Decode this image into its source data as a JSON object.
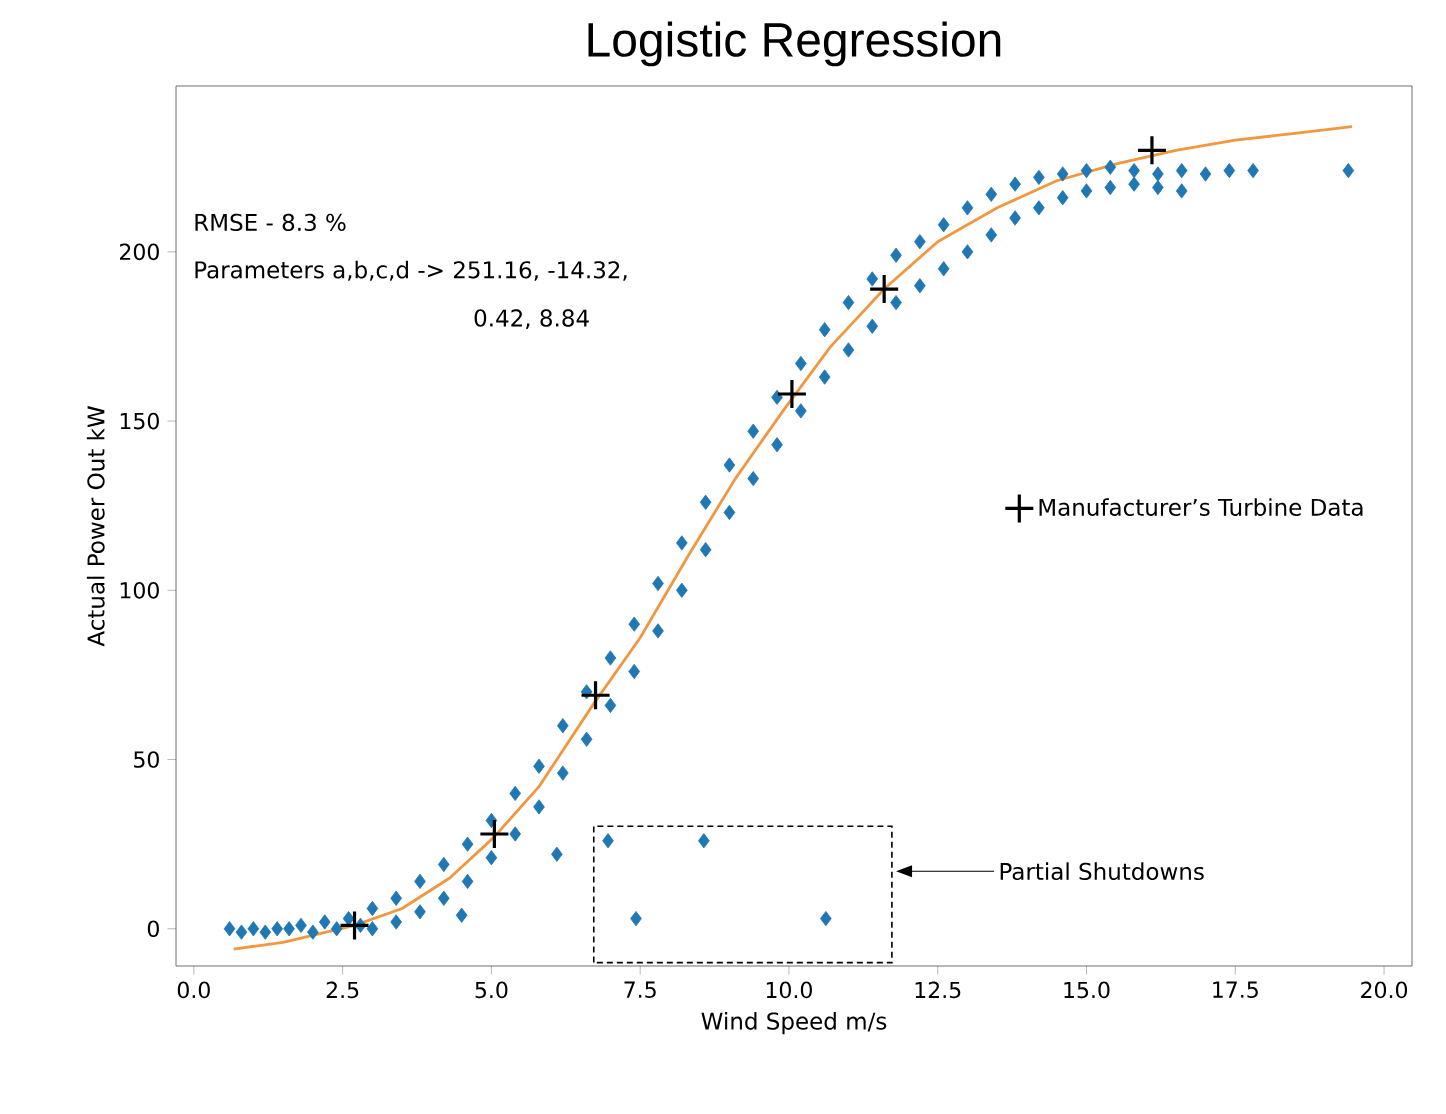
{
  "chart_data": {
    "type": "scatter",
    "title": "Logistic Regression",
    "xlabel": "Wind Speed m/s",
    "ylabel": "Actual Power Out kW",
    "xlim": [
      -0.3,
      20.47
    ],
    "ylim": [
      -11,
      249
    ],
    "xticks": [
      {
        "value": 0,
        "label": "0.0"
      },
      {
        "value": 2.5,
        "label": "2.5"
      },
      {
        "value": 5,
        "label": "5.0"
      },
      {
        "value": 7.5,
        "label": "7.5"
      },
      {
        "value": 10,
        "label": "10.0"
      },
      {
        "value": 12.5,
        "label": "12.5"
      },
      {
        "value": 15,
        "label": "15.0"
      },
      {
        "value": 17.5,
        "label": "17.5"
      },
      {
        "value": 20,
        "label": "20.0"
      }
    ],
    "yticks": [
      0,
      50,
      100,
      150,
      200
    ],
    "grid": false,
    "legend": "right",
    "annotations": [
      "RMSE  - 8.3 %",
      "Parameters a,b,c,d -> 251.16, -14.32,",
      "0.42, 8.84",
      "Partial Shutdowns"
    ],
    "series": [
      {
        "marker": "diamond",
        "color": "#1f77b4",
        "x": [
          0.6,
          0.8,
          1.0,
          1.2,
          1.4,
          1.6,
          1.8,
          2.0,
          2.2,
          2.4,
          2.6,
          2.8,
          3.0,
          3.0,
          3.4,
          3.4,
          3.8,
          3.8,
          4.2,
          4.2,
          4.5,
          4.6,
          4.6,
          5.0,
          5.0,
          5.4,
          5.4,
          5.8,
          5.8,
          6.1,
          6.2,
          6.2,
          6.6,
          6.6,
          7.0,
          7.0,
          7.4,
          7.4,
          7.8,
          7.8,
          8.2,
          8.2,
          8.6,
          8.6,
          9.0,
          9.0,
          9.4,
          9.4,
          9.8,
          9.8,
          10.2,
          10.2,
          10.6,
          10.6,
          11.0,
          11.0,
          11.4,
          11.4,
          11.8,
          11.8,
          12.2,
          12.2,
          12.6,
          12.6,
          13.0,
          13.0,
          13.4,
          13.4,
          13.8,
          13.8,
          14.2,
          14.2,
          14.6,
          14.6,
          15.0,
          15.0,
          15.4,
          15.4,
          15.8,
          15.8,
          16.2,
          16.2,
          16.6,
          16.6,
          17.0,
          17.4,
          17.8,
          19.4,
          6.96,
          7.43,
          8.57,
          10.62
        ],
        "values": [
          0,
          -1,
          0,
          -1,
          0,
          0,
          1,
          -1,
          2,
          0,
          3,
          1,
          6,
          0,
          9,
          2,
          14,
          5,
          19,
          9,
          4,
          25,
          14,
          32,
          21,
          40,
          28,
          48,
          36,
          22,
          60,
          46,
          70,
          56,
          80,
          66,
          90,
          76,
          102,
          88,
          114,
          100,
          126,
          112,
          137,
          123,
          147,
          133,
          157,
          143,
          167,
          153,
          177,
          163,
          185,
          171,
          192,
          178,
          199,
          185,
          203,
          190,
          208,
          195,
          213,
          200,
          217,
          205,
          220,
          210,
          222,
          213,
          223,
          216,
          224,
          218,
          225,
          219,
          224,
          220,
          223,
          219,
          224,
          218,
          223,
          224,
          224,
          224,
          26,
          3,
          26,
          3
        ]
      },
      {
        "type": "line",
        "marker": "none",
        "color": "#f0973f",
        "x": [
          0.67,
          1.5,
          2.7,
          3.5,
          4.3,
          5.04,
          5.8,
          6.7,
          7.5,
          8.3,
          9.1,
          9.9,
          10.7,
          11.6,
          12.5,
          13.5,
          14.5,
          15.5,
          16.5,
          17.5,
          18.5,
          19.46
        ],
        "values": [
          -6,
          -4,
          1,
          6,
          15,
          27,
          42,
          66,
          86,
          110,
          133,
          153,
          172,
          189,
          203,
          213,
          221,
          226,
          230,
          233,
          235,
          237
        ]
      },
      {
        "name": "Manufacturer’s Turbine Data",
        "marker": "cross",
        "color": "#000000",
        "x": [
          2.7,
          5.05,
          6.75,
          10.05,
          11.6,
          16.1
        ],
        "values": [
          1,
          28,
          69,
          158,
          189,
          230
        ]
      }
    ]
  }
}
